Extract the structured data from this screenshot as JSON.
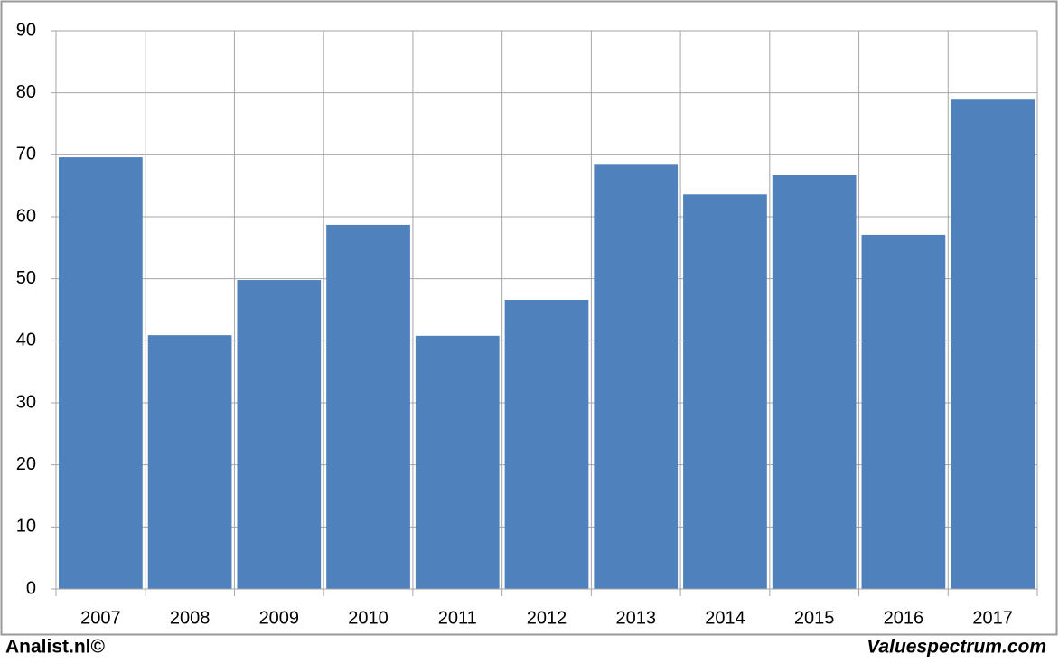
{
  "chart_data": {
    "type": "bar",
    "categories": [
      "2007",
      "2008",
      "2009",
      "2010",
      "2011",
      "2012",
      "2013",
      "2014",
      "2015",
      "2016",
      "2017"
    ],
    "values": [
      69.6,
      40.9,
      49.8,
      58.7,
      40.8,
      46.6,
      68.4,
      63.6,
      66.7,
      57.1,
      78.9
    ],
    "color": "#4f81bd",
    "ylim": [
      0,
      90
    ],
    "yticks": [
      0,
      10,
      20,
      30,
      40,
      50,
      60,
      70,
      80,
      90
    ],
    "grid": true,
    "annotations": [
      "Analist.nl©",
      "Valuespectrum.com"
    ]
  }
}
